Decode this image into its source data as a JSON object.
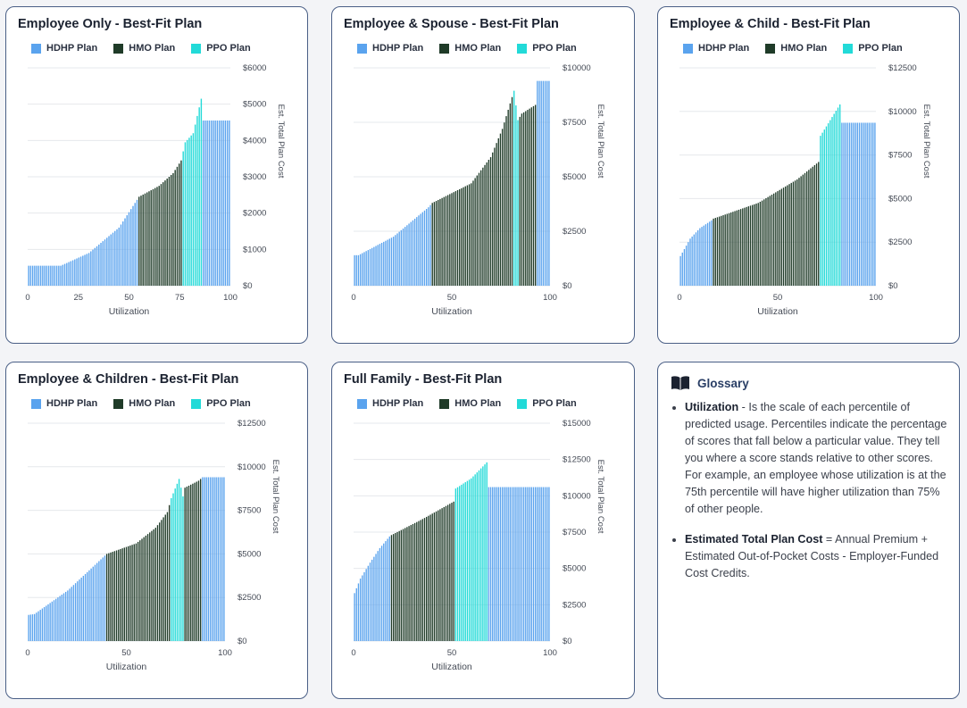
{
  "legend": {
    "hdhp": "HDHP Plan",
    "hmo": "HMO Plan",
    "ppo": "PPO Plan"
  },
  "colors": {
    "hdhp": "#5aa3ee",
    "hmo": "#1f3b28",
    "ppo": "#22dad8",
    "grid": "#e6e8ec",
    "axis_text": "#444a55"
  },
  "charts": [
    {
      "title": "Employee Only - Best-Fit Plan",
      "xlabel": "Utilization",
      "ylabel": "Est. Total Plan Cost",
      "xticks": [
        "0",
        "25",
        "50",
        "75",
        "100"
      ],
      "yticks": [
        "$0",
        "$1000",
        "$2000",
        "$3000",
        "$4000",
        "$5000",
        "$6000"
      ]
    },
    {
      "title": "Employee & Spouse - Best-Fit Plan",
      "xlabel": "Utilization",
      "ylabel": "Est. Total Plan Cost",
      "xticks": [
        "0",
        "50",
        "100"
      ],
      "yticks": [
        "$0",
        "$2500",
        "$5000",
        "$7500",
        "$10000"
      ]
    },
    {
      "title": "Employee & Child - Best-Fit Plan",
      "xlabel": "Utilization",
      "ylabel": "Est. Total Plan Cost",
      "xticks": [
        "0",
        "50",
        "100"
      ],
      "yticks": [
        "$0",
        "$2500",
        "$5000",
        "$7500",
        "$10000",
        "$12500"
      ]
    },
    {
      "title": "Employee & Children - Best-Fit Plan",
      "xlabel": "Utilization",
      "ylabel": "Est. Total Plan Cost",
      "xticks": [
        "0",
        "50",
        "100"
      ],
      "yticks": [
        "$0",
        "$2500",
        "$5000",
        "$7500",
        "$10000",
        "$12500"
      ]
    },
    {
      "title": "Full Family - Best-Fit Plan",
      "xlabel": "Utilization",
      "ylabel": "Est. Total Plan Cost",
      "xticks": [
        "0",
        "50",
        "100"
      ],
      "yticks": [
        "$0",
        "$2500",
        "$5000",
        "$7500",
        "$10000",
        "$12500",
        "$15000"
      ]
    }
  ],
  "glossary": {
    "title": "Glossary",
    "items": [
      {
        "term": "Utilization",
        "text": " - Is the scale of each percentile of predicted usage. Percentiles indicate the percentage of scores that fall below a particular value. They tell you where a score stands relative to other scores. For example, an employee whose utilization is at the 75th percentile will have higher utilization than 75% of other people."
      },
      {
        "term": "Estimated Total Plan Cost",
        "text": " = Annual Premium + Estimated Out-of-Pocket Costs - Employer-Funded Cost Credits."
      }
    ]
  },
  "chart_data": [
    {
      "type": "bar",
      "title": "Employee Only - Best-Fit Plan",
      "xlabel": "Utilization",
      "ylabel": "Est. Total Plan Cost",
      "xlim": [
        0,
        100
      ],
      "ylim": [
        0,
        6000
      ],
      "x": [
        0,
        16,
        30,
        45,
        55,
        65,
        72,
        76,
        78,
        82,
        86,
        87,
        100
      ],
      "values": [
        550,
        550,
        900,
        1600,
        2450,
        2750,
        3100,
        3450,
        3950,
        4200,
        5150,
        4550,
        4550
      ],
      "plan_segments": [
        {
          "plan": "HDHP Plan",
          "x_start": 0,
          "x_end": 55
        },
        {
          "plan": "HMO Plan",
          "x_start": 55,
          "x_end": 77
        },
        {
          "plan": "PPO Plan",
          "x_start": 77,
          "x_end": 87
        },
        {
          "plan": "HDHP Plan",
          "x_start": 87,
          "x_end": 100
        }
      ]
    },
    {
      "type": "bar",
      "title": "Employee & Spouse - Best-Fit Plan",
      "xlabel": "Utilization",
      "ylabel": "Est. Total Plan Cost",
      "xlim": [
        0,
        100
      ],
      "ylim": [
        0,
        10000
      ],
      "x": [
        0,
        2,
        20,
        38,
        40,
        60,
        70,
        76,
        82,
        84,
        86,
        93,
        94,
        100
      ],
      "values": [
        1400,
        1400,
        2250,
        3600,
        3800,
        4700,
        5900,
        7200,
        8950,
        7600,
        7900,
        8300,
        9400,
        9400
      ],
      "plan_segments": [
        {
          "plan": "HDHP Plan",
          "x_start": 0,
          "x_end": 40
        },
        {
          "plan": "HMO Plan",
          "x_start": 40,
          "x_end": 82
        },
        {
          "plan": "PPO Plan",
          "x_start": 82,
          "x_end": 85
        },
        {
          "plan": "HMO Plan",
          "x_start": 85,
          "x_end": 94
        },
        {
          "plan": "HDHP Plan",
          "x_start": 94,
          "x_end": 100
        }
      ]
    },
    {
      "type": "bar",
      "title": "Employee & Child - Best-Fit Plan",
      "xlabel": "Utilization",
      "ylabel": "Est. Total Plan Cost",
      "xlim": [
        0,
        100
      ],
      "ylim": [
        0,
        12500
      ],
      "x": [
        0,
        5,
        10,
        16,
        17,
        40,
        60,
        71,
        72,
        82,
        83,
        100
      ],
      "values": [
        1700,
        2700,
        3300,
        3750,
        3850,
        4750,
        6100,
        7100,
        8600,
        10400,
        9350,
        9350
      ],
      "plan_segments": [
        {
          "plan": "HDHP Plan",
          "x_start": 0,
          "x_end": 17
        },
        {
          "plan": "HMO Plan",
          "x_start": 17,
          "x_end": 72
        },
        {
          "plan": "PPO Plan",
          "x_start": 72,
          "x_end": 83
        },
        {
          "plan": "HDHP Plan",
          "x_start": 83,
          "x_end": 100
        }
      ]
    },
    {
      "type": "bar",
      "title": "Employee & Children - Best-Fit Plan",
      "xlabel": "Utilization",
      "ylabel": "Est. Total Plan Cost",
      "xlim": [
        0,
        100
      ],
      "ylim": [
        0,
        12500
      ],
      "x": [
        0,
        3,
        20,
        39,
        40,
        55,
        65,
        71,
        73,
        77,
        79,
        80,
        87,
        89,
        100
      ],
      "values": [
        1500,
        1550,
        2900,
        4900,
        5000,
        5600,
        6500,
        7400,
        8200,
        9300,
        8300,
        8800,
        9200,
        9400,
        9400
      ],
      "plan_segments": [
        {
          "plan": "HDHP Plan",
          "x_start": 0,
          "x_end": 40
        },
        {
          "plan": "HMO Plan",
          "x_start": 40,
          "x_end": 73
        },
        {
          "plan": "PPO Plan",
          "x_start": 73,
          "x_end": 80
        },
        {
          "plan": "HMO Plan",
          "x_start": 80,
          "x_end": 89
        },
        {
          "plan": "HDHP Plan",
          "x_start": 89,
          "x_end": 100
        }
      ]
    },
    {
      "type": "bar",
      "title": "Full Family - Best-Fit Plan",
      "xlabel": "Utilization",
      "ylabel": "Est. Total Plan Cost",
      "xlim": [
        0,
        100
      ],
      "ylim": [
        0,
        15000
      ],
      "x": [
        0,
        3,
        8,
        13,
        18,
        19,
        35,
        51,
        52,
        60,
        68,
        69,
        100
      ],
      "values": [
        3300,
        4300,
        5400,
        6400,
        7200,
        7300,
        8400,
        9600,
        10500,
        11200,
        12300,
        10600,
        10600
      ],
      "plan_segments": [
        {
          "plan": "HDHP Plan",
          "x_start": 0,
          "x_end": 19
        },
        {
          "plan": "HMO Plan",
          "x_start": 19,
          "x_end": 52
        },
        {
          "plan": "PPO Plan",
          "x_start": 52,
          "x_end": 69
        },
        {
          "plan": "HDHP Plan",
          "x_start": 69,
          "x_end": 100
        }
      ]
    }
  ]
}
